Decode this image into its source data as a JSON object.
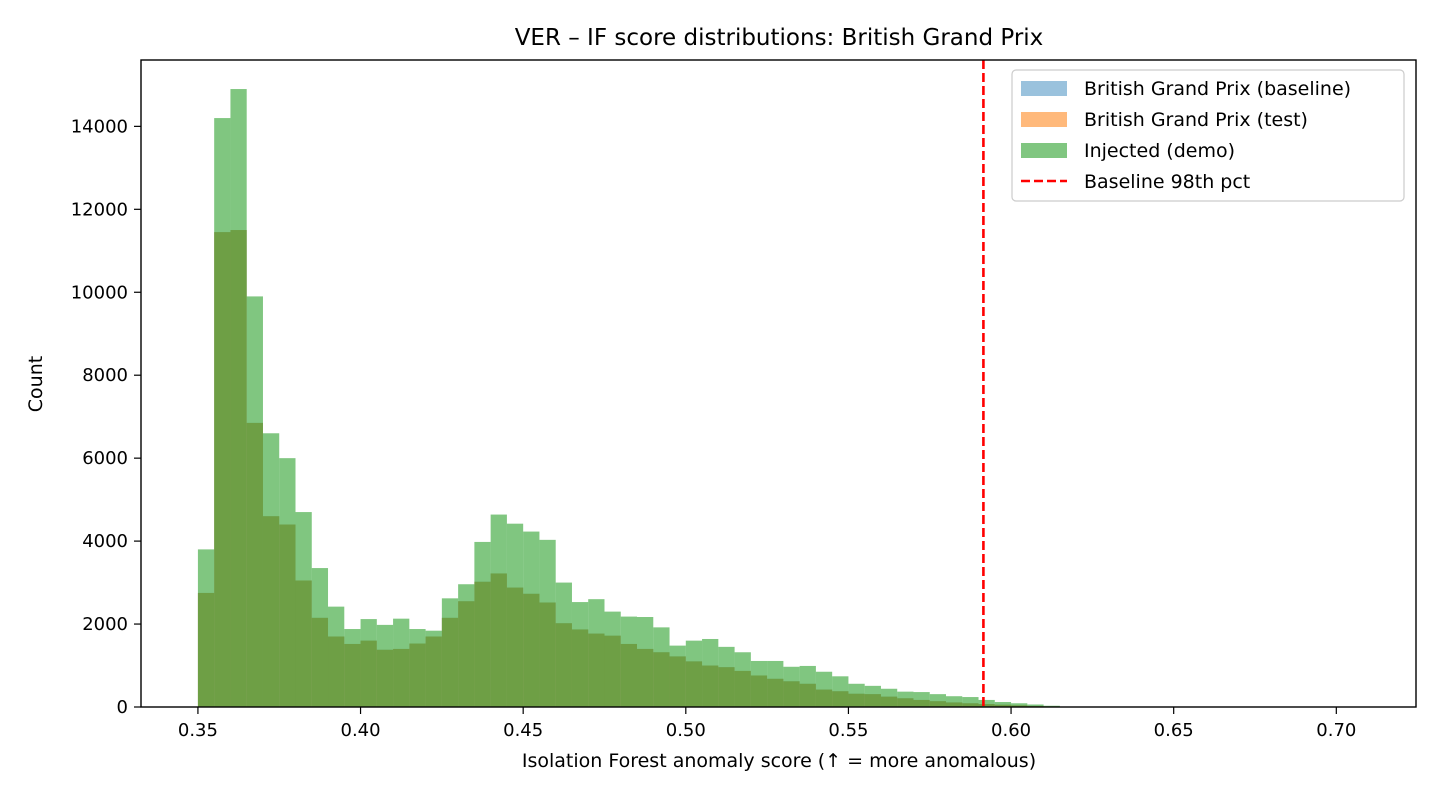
{
  "chart_data": {
    "type": "histogram",
    "title": "VER – IF score distributions: British Grand Prix",
    "xlabel": "Isolation Forest anomaly score (↑ = more anomalous)",
    "ylabel": "Count",
    "xlim": [
      0.3325,
      0.7245
    ],
    "ylim": [
      0,
      15600
    ],
    "x_ticks": [
      0.35,
      0.4,
      0.45,
      0.5,
      0.55,
      0.6,
      0.65,
      0.7
    ],
    "x_tick_labels": [
      "0.35",
      "0.40",
      "0.45",
      "0.50",
      "0.55",
      "0.60",
      "0.65",
      "0.70"
    ],
    "y_ticks": [
      0,
      2000,
      4000,
      6000,
      8000,
      10000,
      12000,
      14000
    ],
    "y_tick_labels": [
      "0",
      "2000",
      "4000",
      "6000",
      "8000",
      "10000",
      "12000",
      "14000"
    ],
    "bin_start": 0.35,
    "bin_width": 0.005,
    "grid": false,
    "legend_position": "top-right",
    "series": [
      {
        "name": "British Grand Prix (baseline)",
        "color": "#1f77b4",
        "opacity": 0.45,
        "values": [
          2750,
          11450,
          11500,
          6850,
          4600,
          4400,
          3050,
          2150,
          1700,
          1520,
          1600,
          1380,
          1400,
          1530,
          1700,
          2150,
          2550,
          3020,
          3220,
          2880,
          2730,
          2520,
          2020,
          1870,
          1770,
          1720,
          1520,
          1400,
          1320,
          1220,
          1100,
          1000,
          960,
          870,
          760,
          680,
          620,
          560,
          420,
          380,
          320,
          310,
          250,
          210,
          170,
          140,
          110,
          90,
          70,
          55,
          40,
          25,
          15,
          10,
          6,
          3,
          2,
          1,
          1,
          1,
          0,
          0
        ]
      },
      {
        "name": "British Grand Prix (test)",
        "color": "#ff7f0e",
        "opacity": 0.55,
        "values": [
          2750,
          11450,
          11500,
          6850,
          4600,
          4400,
          3050,
          2150,
          1700,
          1520,
          1600,
          1380,
          1400,
          1530,
          1700,
          2150,
          2550,
          3020,
          3220,
          2880,
          2730,
          2520,
          2020,
          1870,
          1770,
          1720,
          1520,
          1400,
          1320,
          1220,
          1100,
          1000,
          960,
          870,
          760,
          680,
          620,
          560,
          420,
          380,
          320,
          310,
          250,
          210,
          170,
          140,
          110,
          90,
          70,
          55,
          40,
          25,
          15,
          10,
          6,
          3,
          2,
          1,
          1,
          1,
          0,
          0
        ]
      },
      {
        "name": "Injected (demo)",
        "color": "#2ca02c",
        "opacity": 0.6,
        "values": [
          3800,
          14200,
          14900,
          9900,
          6600,
          6000,
          4700,
          3350,
          2420,
          1880,
          2120,
          1980,
          2130,
          1880,
          1840,
          2620,
          2960,
          3980,
          4640,
          4420,
          4230,
          4030,
          3000,
          2530,
          2600,
          2300,
          2180,
          2170,
          1920,
          1480,
          1600,
          1640,
          1450,
          1320,
          1110,
          1110,
          970,
          990,
          850,
          740,
          560,
          510,
          440,
          370,
          360,
          310,
          260,
          240,
          170,
          120,
          90,
          60,
          30,
          10,
          3,
          1,
          0,
          0,
          0,
          0,
          0,
          0
        ]
      }
    ],
    "threshold": {
      "name": "Baseline 98th pct",
      "x": 0.5915,
      "color": "#ff0000",
      "style": "dashed"
    }
  }
}
